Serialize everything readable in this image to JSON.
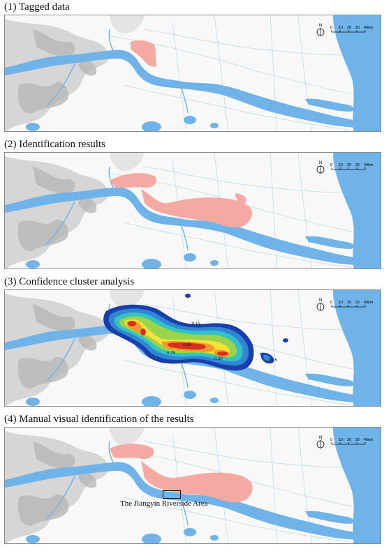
{
  "panels": [
    {
      "title": "(1) Tagged data",
      "layer": "tagged"
    },
    {
      "title": "(2) Identification results",
      "layer": "identified"
    },
    {
      "title": "(3) Confidence cluster analysis",
      "layer": "confidence"
    },
    {
      "title": "(4) Manual visual identification of the results",
      "layer": "manual"
    }
  ],
  "scale_bar": {
    "north_label": "N",
    "ticks": [
      "0",
      "10",
      "20",
      "30",
      "40km"
    ]
  },
  "contour_labels": [
    "0.15",
    "0.60",
    "0.75",
    "0.30",
    "0.15"
  ],
  "callout": {
    "label": "The Jiangyin Riverside Area"
  },
  "colors": {
    "water": "#6fb3e8",
    "land": "#f7f8f7",
    "terrain": "#cfcfcf",
    "tagged": "#f4a9a3",
    "c1": "#1b3fa8",
    "c2": "#2f86d6",
    "c3": "#37c2c2",
    "c4": "#9ad44a",
    "c5": "#f5e23a",
    "c6": "#f39a2a",
    "c7": "#d8301f"
  }
}
